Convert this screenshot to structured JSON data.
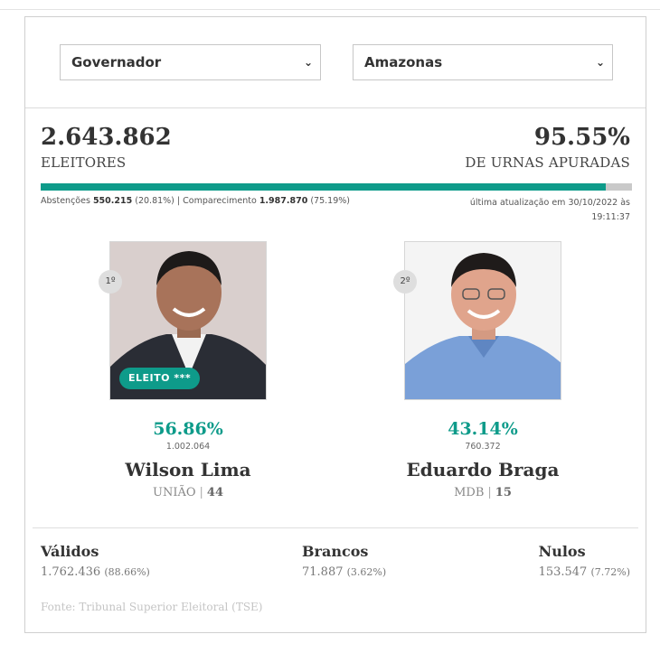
{
  "filters": {
    "cargo": "Governador",
    "estado": "Amazonas"
  },
  "summary": {
    "eleitores_value": "2.643.862",
    "eleitores_label": "ELEITORES",
    "urnas_pct": "95.55%",
    "urnas_label": "DE URNAS APURADAS",
    "progress_fraction": 0.9555,
    "abstencoes_label": "Abstenções",
    "abstencoes_value": "550.215",
    "abstencoes_pct": "(20.81%)",
    "comparecimento_label": "Comparecimento",
    "comparecimento_value": "1.987.870",
    "comparecimento_pct": "(75.19%)",
    "update_line1": "última atualização em 30/10/2022 às",
    "update_line2": "19:11:37"
  },
  "candidates": [
    {
      "rank": "1º",
      "badge": "ELEITO ***",
      "pct": "56.86%",
      "votes": "1.002.064",
      "name": "Wilson Lima",
      "party": "UNIÃO",
      "number": "44"
    },
    {
      "rank": "2º",
      "pct": "43.14%",
      "votes": "760.372",
      "name": "Eduardo Braga",
      "party": "MDB",
      "number": "15"
    }
  ],
  "totals": {
    "validos": {
      "label": "Válidos",
      "value": "1.762.436",
      "pct": "(88.66%)"
    },
    "brancos": {
      "label": "Brancos",
      "value": "71.887",
      "pct": "(3.62%)"
    },
    "nulos": {
      "label": "Nulos",
      "value": "153.547",
      "pct": "(7.72%)"
    }
  },
  "source": "Fonte: Tribunal Superior Eleitoral (TSE)",
  "colors": {
    "accent": "#0e9b8a",
    "progress_track": "#c9c9c9"
  }
}
